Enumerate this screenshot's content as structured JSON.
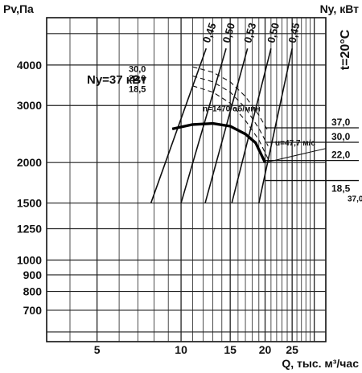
{
  "chart_data": {
    "type": "line",
    "title": "",
    "ylabel": "Pv,Па",
    "ylabel_right": "Ny, кВт",
    "xlabel": "Q, тыс. м³/час",
    "temperature_label": "t=20°C",
    "power_label": "Ny=37 кВт",
    "speed_label": "n=1470 об/мин",
    "velocity_label": "u=47,7 м/с",
    "xscale": "log",
    "yscale": "log",
    "xlim": [
      3.3,
      33
    ],
    "ylim": [
      560,
      5600
    ],
    "x_ticks": [
      {
        "value": 5,
        "label": "5"
      },
      {
        "value": 10,
        "label": "10"
      },
      {
        "value": 15,
        "label": "15"
      },
      {
        "value": 20,
        "label": "20"
      },
      {
        "value": 25,
        "label": "25"
      }
    ],
    "y_ticks": [
      {
        "value": 4000,
        "label": "4000"
      },
      {
        "value": 3000,
        "label": "3000"
      },
      {
        "value": 2000,
        "label": "2000"
      },
      {
        "value": 1500,
        "label": "1500"
      },
      {
        "value": 1250,
        "label": "1250"
      },
      {
        "value": 1000,
        "label": "1000"
      },
      {
        "value": 900,
        "label": "900"
      },
      {
        "value": 800,
        "label": "800"
      },
      {
        "value": 700,
        "label": "700"
      }
    ],
    "right_power_lines": [
      {
        "label": "37,0",
        "y": 2560
      },
      {
        "label": "30,0",
        "y": 2310
      },
      {
        "label": "22,0",
        "y": 2030
      },
      {
        "label": "18,5",
        "y": 1760
      }
    ],
    "extra_right_label": "37,0",
    "left_power_labels": [
      {
        "label": "30,0",
        "y": 3900
      },
      {
        "label": "22,0",
        "y": 3650
      },
      {
        "label": "18,5",
        "y": 3380
      }
    ],
    "dashed_curves": [
      {
        "name": "30,0",
        "points": [
          [
            11.0,
            3950
          ],
          [
            13.0,
            3800
          ],
          [
            15.0,
            3550
          ],
          [
            17.0,
            3200
          ],
          [
            19.0,
            2800
          ],
          [
            20.5,
            2500
          ]
        ]
      },
      {
        "name": "22,0",
        "points": [
          [
            11.0,
            3700
          ],
          [
            13.0,
            3550
          ],
          [
            15.0,
            3300
          ],
          [
            17.0,
            2950
          ],
          [
            19.0,
            2550
          ],
          [
            20.5,
            2250
          ]
        ]
      },
      {
        "name": "18,5",
        "points": [
          [
            11.0,
            3450
          ],
          [
            13.0,
            3300
          ],
          [
            15.0,
            3050
          ],
          [
            17.0,
            2700
          ],
          [
            19.0,
            2350
          ],
          [
            20.5,
            2050
          ]
        ]
      }
    ],
    "efficiency_lines": [
      {
        "label": "0,45",
        "points": [
          [
            7.8,
            1500
          ],
          [
            12.3,
            4500
          ]
        ]
      },
      {
        "label": "0,50",
        "points": [
          [
            10.0,
            1500
          ],
          [
            14.5,
            4500
          ]
        ]
      },
      {
        "label": "0,53",
        "points": [
          [
            12.2,
            1500
          ],
          [
            17.3,
            4500
          ]
        ]
      },
      {
        "label": "0,50",
        "points": [
          [
            15.2,
            1500
          ],
          [
            21.0,
            4500
          ]
        ]
      },
      {
        "label": "0,45",
        "points": [
          [
            19.0,
            1500
          ],
          [
            25.0,
            4500
          ]
        ]
      }
    ],
    "series": [
      {
        "name": "",
        "points": [
          [
            9.3,
            2540
          ],
          [
            11.0,
            2620
          ],
          [
            13.0,
            2640
          ],
          [
            15.0,
            2590
          ],
          [
            17.0,
            2450
          ],
          [
            18.5,
            2300
          ],
          [
            20.0,
            2000
          ]
        ]
      }
    ],
    "legend": "none",
    "grid": true
  }
}
